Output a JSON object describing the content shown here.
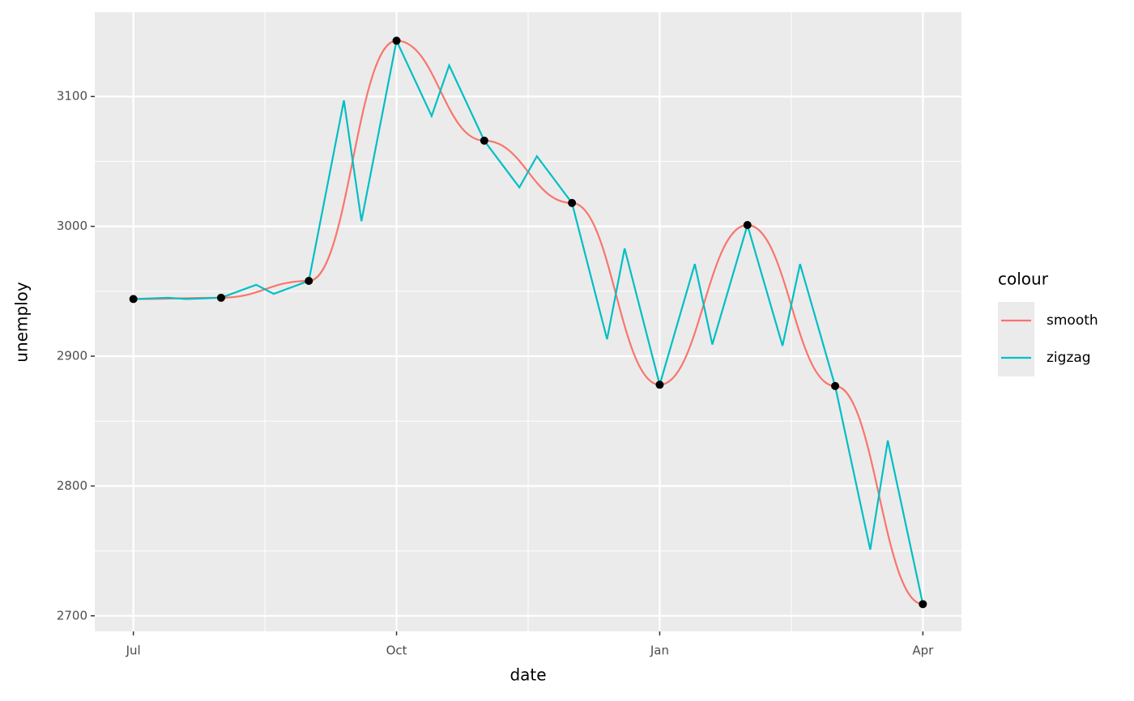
{
  "chart_data": {
    "type": "line",
    "x_label": "date",
    "y_label": "unemploy",
    "legend_title": "colour",
    "legend_position": "right",
    "grid": true,
    "xlim": [
      -0.44,
      9.44
    ],
    "xticks": [
      {
        "value": 0,
        "label": "Jul"
      },
      {
        "value": 3,
        "label": "Oct"
      },
      {
        "value": 6,
        "label": "Jan"
      },
      {
        "value": 9,
        "label": "Apr"
      }
    ],
    "ylim": [
      2688,
      3165
    ],
    "yticks": [
      2700,
      2800,
      2900,
      3000,
      3100
    ],
    "series": [
      {
        "name": "smooth",
        "color": "#F8766D",
        "curve": "smooth",
        "x": [
          0,
          1,
          2,
          3,
          4,
          5,
          6,
          7,
          8,
          9
        ],
        "values": [
          2944,
          2945,
          2958,
          3143,
          3066,
          3018,
          2878,
          3001,
          2877,
          2709
        ]
      },
      {
        "name": "zigzag",
        "color": "#00BFC4",
        "curve": "linear",
        "x": [
          0,
          0.4,
          0.6,
          1,
          1.4,
          1.6,
          2,
          2.4,
          2.6,
          3,
          3.4,
          3.6,
          4,
          4.4,
          4.6,
          5,
          5.4,
          5.6,
          6,
          6.4,
          6.6,
          7,
          7.4,
          7.6,
          8,
          8.4,
          8.6,
          9
        ],
        "values": [
          2944,
          2945,
          2944,
          2945,
          2955,
          2948,
          2958,
          3097,
          3004,
          3143,
          3085,
          3124,
          3066,
          3030,
          3054,
          3018,
          2913,
          2983,
          2878,
          2971,
          2909,
          3001,
          2908,
          2971,
          2877,
          2751,
          2835,
          2709
        ]
      }
    ],
    "points": {
      "color": "#000000",
      "x": [
        0,
        1,
        2,
        3,
        4,
        5,
        6,
        7,
        8,
        9
      ],
      "values": [
        2944,
        2945,
        2958,
        3143,
        3066,
        3018,
        2878,
        3001,
        2877,
        2709
      ]
    }
  }
}
